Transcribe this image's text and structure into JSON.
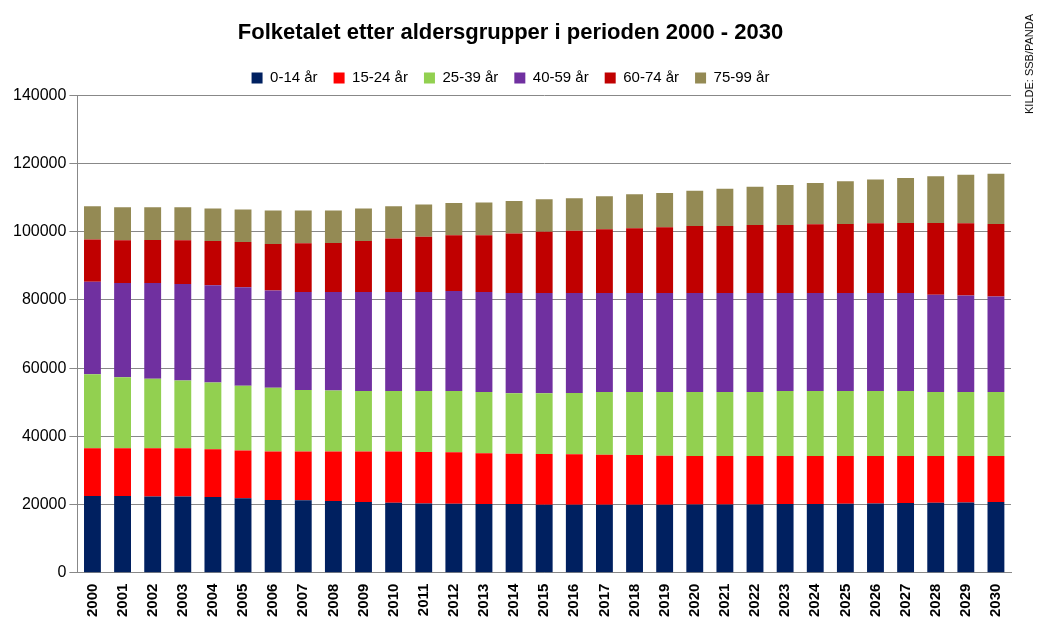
{
  "chart_data": {
    "type": "bar",
    "title": "Folketalet etter aldersgrupper i perioden 2000 - 2030",
    "annotations": [
      "KILDE: SSB/PANDA"
    ],
    "categories": [
      "2000",
      "2001",
      "2002",
      "2003",
      "2004",
      "2005",
      "2006",
      "2007",
      "2008",
      "2009",
      "2010",
      "2011",
      "2012",
      "2013",
      "2014",
      "2015",
      "2016",
      "2017",
      "2018",
      "2019",
      "2020",
      "2021",
      "2022",
      "2023",
      "2024",
      "2025",
      "2026",
      "2027",
      "2028",
      "2029",
      "2030"
    ],
    "stacked": true,
    "grid": true,
    "legend": "top",
    "ylim": [
      0,
      140000
    ],
    "yticks": [
      0,
      20000,
      40000,
      60000,
      80000,
      100000,
      120000,
      140000
    ],
    "series": [
      {
        "name": "0-14 år",
        "color": "#002060",
        "values": [
          22500,
          22500,
          22300,
          22300,
          22200,
          21800,
          21300,
          21200,
          21000,
          20700,
          20500,
          20300,
          20200,
          20100,
          20100,
          19900,
          19900,
          19900,
          19900,
          19900,
          20000,
          20000,
          20000,
          20100,
          20100,
          20200,
          20300,
          20400,
          20500,
          20600,
          20700
        ]
      },
      {
        "name": "15-24 år",
        "color": "#ff0000",
        "values": [
          14000,
          14000,
          14200,
          14200,
          14000,
          14000,
          14200,
          14300,
          14500,
          14800,
          15000,
          15100,
          15100,
          14900,
          14800,
          14900,
          14800,
          14700,
          14600,
          14400,
          14200,
          14200,
          14200,
          14100,
          14100,
          14000,
          13900,
          13800,
          13700,
          13600,
          13500
        ]
      },
      {
        "name": "25-39 år",
        "color": "#92d050",
        "values": [
          21700,
          20800,
          20400,
          19900,
          19600,
          19000,
          18700,
          18100,
          17900,
          17800,
          17800,
          17900,
          18000,
          18000,
          17700,
          17800,
          18000,
          18400,
          18500,
          18700,
          18800,
          18800,
          18800,
          19100,
          19100,
          19100,
          19100,
          19100,
          18800,
          18800,
          18800
        ]
      },
      {
        "name": "40-59 år",
        "color": "#7030a0",
        "values": [
          27100,
          27700,
          28100,
          28300,
          28500,
          28900,
          28600,
          28700,
          28900,
          29000,
          29000,
          29000,
          29300,
          29300,
          29400,
          29400,
          29300,
          29000,
          29000,
          29000,
          29000,
          29000,
          29000,
          28700,
          28700,
          28700,
          28700,
          28700,
          28500,
          28300,
          28000
        ]
      },
      {
        "name": "60-74 år",
        "color": "#c00000",
        "values": [
          12400,
          12500,
          12600,
          12800,
          13000,
          13300,
          13600,
          14300,
          14400,
          15000,
          15700,
          16200,
          16400,
          16700,
          17500,
          18000,
          18300,
          18700,
          19000,
          19300,
          19700,
          19700,
          20000,
          20000,
          20200,
          20300,
          20500,
          20600,
          21100,
          21200,
          21300
        ]
      },
      {
        "name": "75-99 år",
        "color": "#948a54",
        "values": [
          9800,
          9700,
          9600,
          9700,
          9500,
          9500,
          9800,
          9600,
          9500,
          9500,
          9500,
          9500,
          9400,
          9600,
          9500,
          9500,
          9500,
          9700,
          10000,
          10100,
          10300,
          10900,
          11200,
          11700,
          12100,
          12500,
          12800,
          13200,
          13700,
          14200,
          14700
        ]
      }
    ]
  }
}
